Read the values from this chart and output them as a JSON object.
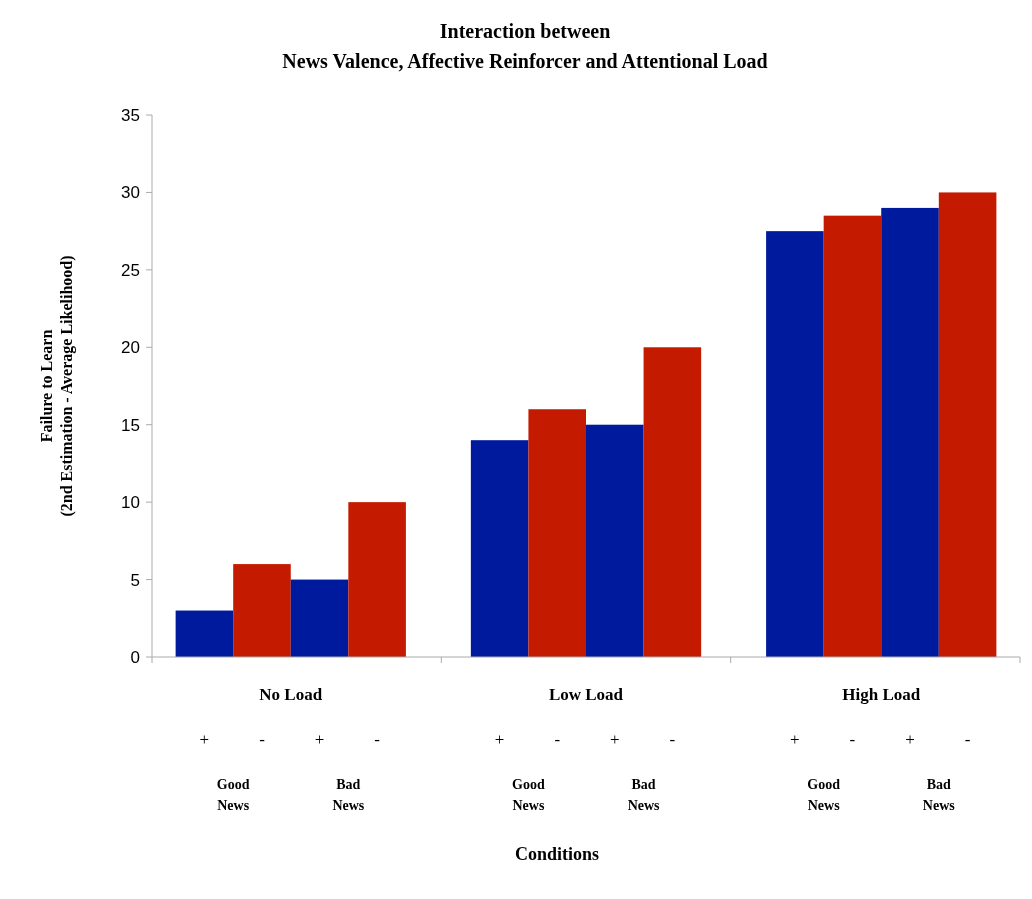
{
  "chart_data": {
    "type": "bar",
    "title": "Interaction between",
    "subtitle": "News Valence, Affective Reinforcer and Attentional Load",
    "ylabel": "Failure to Learn\n(2nd Estimation - Average Likelihood)",
    "categories": [
      "No Load",
      "Low Load",
      "High Load"
    ],
    "series": [
      {
        "color": "#001a9e",
        "values": [
          3,
          14,
          27.5
        ]
      },
      {
        "color": "#c41a00",
        "values": [
          6,
          16,
          28.5
        ]
      },
      {
        "color": "#001a9e",
        "values": [
          5,
          15,
          29
        ]
      },
      {
        "color": "#c41a00",
        "values": [
          10,
          20,
          30
        ]
      }
    ],
    "annotations": [
      "+",
      "-",
      "+",
      "-",
      "Good News",
      "Bad News",
      "+",
      "-",
      "+",
      "-",
      "Good News",
      "Bad News",
      "+",
      "-",
      "+",
      "-",
      "Good News",
      "Bad News",
      "Conditions"
    ],
    "ylim": [
      0,
      35
    ],
    "yticks": [
      0,
      5,
      10,
      15,
      20,
      25,
      30,
      35
    ],
    "grid": false
  }
}
